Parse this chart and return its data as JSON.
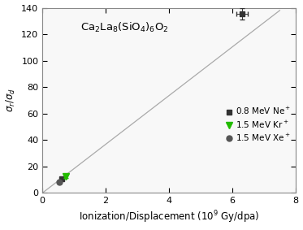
{
  "title": "Ca$_2$La$_8$(SiO$_4$)$_6$O$_2$",
  "xlabel": "Ionization/Displacement (10$^9$ Gy/dpa)",
  "ylabel": "$\\sigma_r$/$\\sigma_d$",
  "xlim": [
    0,
    8
  ],
  "ylim": [
    0,
    140
  ],
  "yticks": [
    0,
    20,
    40,
    60,
    80,
    100,
    120,
    140
  ],
  "xticks": [
    0,
    2,
    4,
    6,
    8
  ],
  "fit_line": {
    "x": [
      0,
      7.5
    ],
    "y": [
      0,
      138.0
    ]
  },
  "ne_data": {
    "x": [
      0.62,
      6.3
    ],
    "y": [
      10.5,
      135.5
    ],
    "xerr": [
      0.0,
      0.18
    ],
    "yerr": [
      0.8,
      4.5
    ],
    "color": "#333333",
    "marker": "s",
    "markersize": 5,
    "label": "0.8 MeV Ne$^+$"
  },
  "kr_data": {
    "x": [
      0.73
    ],
    "y": [
      12.5
    ],
    "xerr": [
      0.04
    ],
    "yerr": [
      1.2
    ],
    "color": "#22bb00",
    "marker": "v",
    "markersize": 6,
    "label": "1.5 MeV Kr$^+$"
  },
  "xe_data": {
    "x": [
      0.54
    ],
    "y": [
      8.5
    ],
    "xerr": [
      0.04
    ],
    "yerr": [
      1.0
    ],
    "color": "#555555",
    "marker": "o",
    "markersize": 5,
    "label": "1.5 MeV Xe$^+$"
  },
  "background_color": "#ffffff",
  "plot_bg_color": "#f8f8f8",
  "line_color": "#aaaaaa",
  "legend_fontsize": 7.5,
  "title_fontsize": 9.5,
  "tick_fontsize": 8,
  "label_fontsize": 8.5
}
